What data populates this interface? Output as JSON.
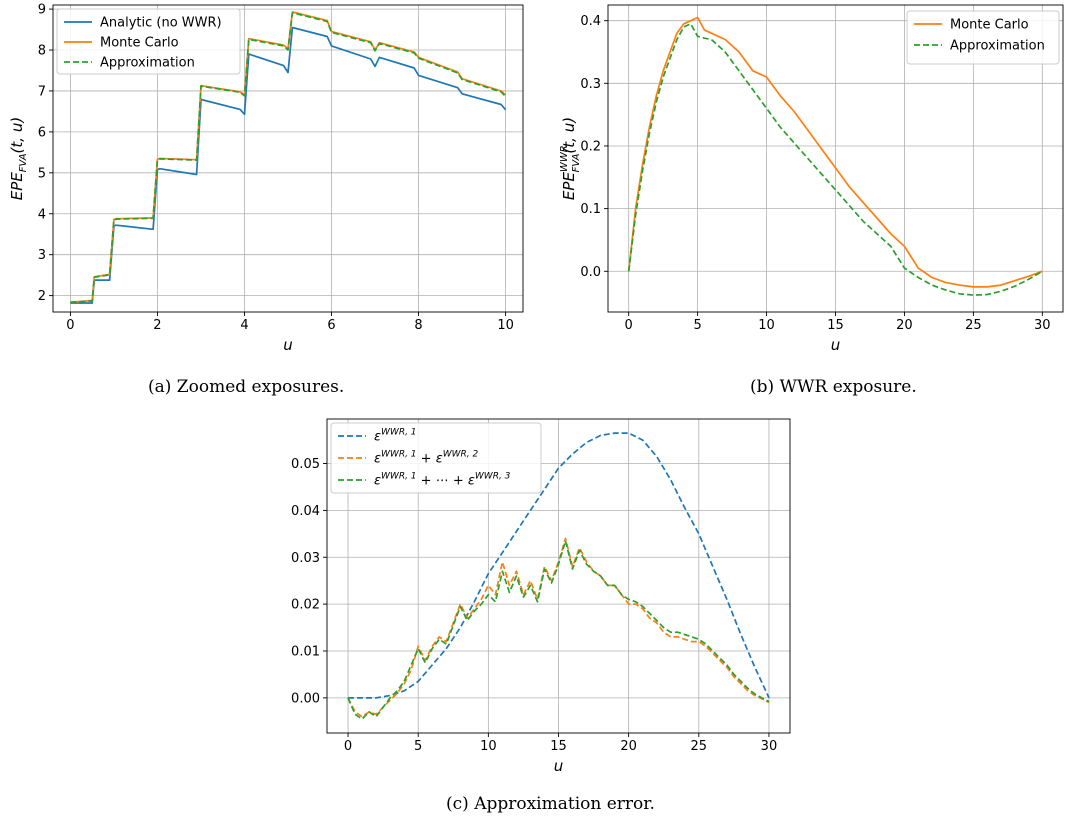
{
  "captions": {
    "a": "(a) Zoomed exposures.",
    "b": "(b) WWR exposure.",
    "c": "(c) Approximation error."
  },
  "chart_data": [
    {
      "id": "a",
      "type": "line",
      "title": "",
      "xlabel": "u",
      "ylabel": "EPE_FVA(t,u)",
      "xlim": [
        -0.4,
        10.4
      ],
      "ylim": [
        1.6,
        9.1
      ],
      "xticks": [
        0,
        2,
        4,
        6,
        8,
        10
      ],
      "yticks": [
        2,
        3,
        4,
        5,
        6,
        7,
        8,
        9
      ],
      "grid": true,
      "legend": "top-left",
      "series": [
        {
          "name": "Analytic (no WWR)",
          "color": "#1f77b4",
          "style": "solid",
          "x": [
            0.0,
            0.5,
            0.55,
            0.9,
            1.0,
            1.05,
            1.9,
            2.0,
            2.05,
            2.9,
            3.0,
            3.05,
            3.9,
            4.0,
            4.1,
            4.9,
            5.0,
            5.1,
            5.9,
            6.0,
            6.9,
            7.0,
            7.1,
            7.9,
            8.0,
            8.9,
            9.0,
            9.9,
            10.0
          ],
          "y": [
            1.82,
            1.82,
            2.38,
            2.38,
            3.7,
            3.72,
            3.62,
            5.08,
            5.1,
            4.96,
            6.8,
            6.78,
            6.55,
            6.43,
            7.9,
            7.62,
            7.45,
            8.55,
            8.33,
            8.1,
            7.78,
            7.6,
            7.82,
            7.56,
            7.38,
            7.08,
            6.93,
            6.67,
            6.54
          ]
        },
        {
          "name": "Monte Carlo",
          "color": "#ff7f0e",
          "style": "solid",
          "x": [
            0.0,
            0.5,
            0.55,
            0.9,
            1.0,
            1.05,
            1.9,
            2.0,
            2.05,
            2.9,
            3.0,
            3.05,
            3.9,
            4.0,
            4.1,
            4.9,
            5.0,
            5.1,
            5.9,
            6.0,
            6.9,
            7.0,
            7.1,
            7.9,
            8.0,
            8.9,
            9.0,
            9.9,
            10.0
          ],
          "y": [
            1.84,
            1.88,
            2.46,
            2.52,
            3.86,
            3.88,
            3.9,
            5.33,
            5.35,
            5.32,
            7.13,
            7.12,
            6.98,
            6.9,
            8.28,
            8.12,
            8.03,
            8.93,
            8.72,
            8.45,
            8.2,
            8.0,
            8.18,
            7.95,
            7.82,
            7.46,
            7.3,
            7.0,
            6.9
          ]
        },
        {
          "name": "Approximation",
          "color": "#2ca02c",
          "style": "dashed",
          "x": [
            0.0,
            0.5,
            0.55,
            0.9,
            1.0,
            1.05,
            1.9,
            2.0,
            2.05,
            2.9,
            3.0,
            3.05,
            3.9,
            4.0,
            4.1,
            4.9,
            5.0,
            5.1,
            5.9,
            6.0,
            6.9,
            7.0,
            7.1,
            7.9,
            8.0,
            8.9,
            9.0,
            9.9,
            10.0
          ],
          "y": [
            1.84,
            1.87,
            2.45,
            2.51,
            3.85,
            3.87,
            3.89,
            5.32,
            5.34,
            5.31,
            7.12,
            7.11,
            6.97,
            6.88,
            8.26,
            8.1,
            8.0,
            8.91,
            8.7,
            8.43,
            8.18,
            7.98,
            8.16,
            7.93,
            7.8,
            7.44,
            7.28,
            6.98,
            6.86
          ]
        }
      ]
    },
    {
      "id": "b",
      "type": "line",
      "title": "",
      "xlabel": "u",
      "ylabel": "EPE_FVA^WWR(t,u)",
      "xlim": [
        -1.5,
        31.5
      ],
      "ylim": [
        -0.065,
        0.425
      ],
      "xticks": [
        0,
        5,
        10,
        15,
        20,
        25,
        30
      ],
      "yticks": [
        0.0,
        0.1,
        0.2,
        0.3,
        0.4
      ],
      "grid": true,
      "legend": "top-right",
      "series": [
        {
          "name": "Monte Carlo",
          "color": "#ff7f0e",
          "style": "solid",
          "x": [
            0,
            0.5,
            1,
            1.5,
            2,
            2.5,
            3,
            3.5,
            4,
            4.5,
            5,
            5.5,
            6,
            7,
            8,
            9,
            10,
            11,
            12,
            13,
            14,
            15,
            16,
            17,
            18,
            19,
            20,
            21,
            22,
            23,
            24,
            25,
            26,
            27,
            28,
            29,
            30
          ],
          "y": [
            0.0,
            0.1,
            0.17,
            0.23,
            0.28,
            0.32,
            0.35,
            0.38,
            0.395,
            0.4,
            0.405,
            0.385,
            0.38,
            0.37,
            0.35,
            0.32,
            0.31,
            0.28,
            0.255,
            0.225,
            0.195,
            0.165,
            0.135,
            0.11,
            0.085,
            0.06,
            0.04,
            0.005,
            -0.01,
            -0.018,
            -0.022,
            -0.025,
            -0.025,
            -0.022,
            -0.015,
            -0.008,
            0.0
          ]
        },
        {
          "name": "Approximation",
          "color": "#2ca02c",
          "style": "dashed",
          "x": [
            0,
            0.5,
            1,
            1.5,
            2,
            2.5,
            3,
            3.5,
            4,
            4.5,
            5,
            5.5,
            6,
            7,
            8,
            9,
            10,
            11,
            12,
            13,
            14,
            15,
            16,
            17,
            18,
            19,
            20,
            21,
            22,
            23,
            24,
            25,
            26,
            27,
            28,
            29,
            30
          ],
          "y": [
            0.0,
            0.09,
            0.16,
            0.22,
            0.27,
            0.31,
            0.34,
            0.37,
            0.39,
            0.395,
            0.375,
            0.372,
            0.37,
            0.35,
            0.32,
            0.29,
            0.26,
            0.23,
            0.205,
            0.18,
            0.155,
            0.13,
            0.105,
            0.08,
            0.06,
            0.04,
            0.005,
            -0.01,
            -0.022,
            -0.03,
            -0.036,
            -0.038,
            -0.037,
            -0.032,
            -0.024,
            -0.013,
            0.0
          ]
        }
      ]
    },
    {
      "id": "c",
      "type": "line",
      "title": "",
      "xlabel": "u",
      "ylabel": "",
      "xlim": [
        -1.5,
        31.5
      ],
      "ylim": [
        -0.0075,
        0.0595
      ],
      "xticks": [
        0,
        5,
        10,
        15,
        20,
        25,
        30
      ],
      "yticks": [
        0.0,
        0.01,
        0.02,
        0.03,
        0.04,
        0.05
      ],
      "ytick_labels": [
        "0.00",
        "0.01",
        "0.02",
        "0.03",
        "0.04",
        "0.05"
      ],
      "grid": true,
      "legend": "top-left",
      "series": [
        {
          "name": "ε^{WWR,1}",
          "color": "#1f77b4",
          "style": "dashed",
          "x": [
            0,
            2,
            3,
            4,
            5,
            6,
            7,
            8,
            9,
            10,
            11,
            12,
            13,
            14,
            15,
            16,
            17,
            18,
            19,
            20,
            21,
            22,
            23,
            24,
            25,
            26,
            27,
            28,
            29,
            30
          ],
          "y": [
            0.0,
            0.0,
            0.0005,
            0.0015,
            0.0035,
            0.007,
            0.0105,
            0.015,
            0.0205,
            0.0265,
            0.031,
            0.0355,
            0.04,
            0.0445,
            0.049,
            0.052,
            0.0545,
            0.056,
            0.0565,
            0.0565,
            0.055,
            0.0515,
            0.0465,
            0.0405,
            0.035,
            0.028,
            0.021,
            0.0135,
            0.0065,
            0.0
          ]
        },
        {
          "name": "ε^{WWR,1} + ε^{WWR,2}",
          "color": "#ff7f0e",
          "style": "dashed",
          "x": [
            0,
            0.5,
            1,
            1.5,
            2,
            2.5,
            3,
            3.5,
            4,
            4.5,
            5,
            5.5,
            6,
            6.5,
            7,
            7.5,
            8,
            8.5,
            9,
            9.5,
            10,
            10.5,
            11,
            11.5,
            12,
            12.5,
            13,
            13.5,
            14,
            14.5,
            15,
            15.5,
            16,
            16.5,
            17,
            17.5,
            18,
            18.5,
            19,
            19.5,
            20,
            20.5,
            21,
            21.5,
            22,
            22.5,
            23,
            23.5,
            24,
            24.5,
            25,
            25.5,
            26,
            26.5,
            27,
            27.5,
            28,
            28.5,
            29,
            29.5,
            30
          ],
          "y": [
            0.0,
            -0.003,
            -0.004,
            -0.003,
            -0.0035,
            -0.002,
            -0.0005,
            0.001,
            0.003,
            0.006,
            0.011,
            0.008,
            0.011,
            0.013,
            0.012,
            0.016,
            0.02,
            0.017,
            0.019,
            0.021,
            0.024,
            0.022,
            0.029,
            0.024,
            0.027,
            0.022,
            0.025,
            0.021,
            0.028,
            0.025,
            0.029,
            0.034,
            0.028,
            0.032,
            0.029,
            0.027,
            0.026,
            0.024,
            0.024,
            0.022,
            0.02,
            0.02,
            0.019,
            0.017,
            0.016,
            0.014,
            0.013,
            0.013,
            0.0125,
            0.012,
            0.012,
            0.011,
            0.0095,
            0.008,
            0.0065,
            0.0045,
            0.003,
            0.0015,
            0.0005,
            -0.0002,
            -0.001
          ]
        },
        {
          "name": "ε^{WWR,1} + ⋯ + ε^{WWR,3}",
          "color": "#2ca02c",
          "style": "dashed",
          "x": [
            0,
            0.5,
            1,
            1.5,
            2,
            2.5,
            3,
            3.5,
            4,
            4.5,
            5,
            5.5,
            6,
            6.5,
            7,
            7.5,
            8,
            8.5,
            9,
            9.5,
            10,
            10.5,
            11,
            11.5,
            12,
            12.5,
            13,
            13.5,
            14,
            14.5,
            15,
            15.5,
            16,
            16.5,
            17,
            17.5,
            18,
            18.5,
            19,
            19.5,
            20,
            20.5,
            21,
            21.5,
            22,
            22.5,
            23,
            23.5,
            24,
            24.5,
            25,
            25.5,
            26,
            26.5,
            27,
            27.5,
            28,
            28.5,
            29,
            29.5,
            30
          ],
          "y": [
            0.0,
            -0.0035,
            -0.0045,
            -0.003,
            -0.004,
            -0.002,
            0.0,
            0.0015,
            0.0035,
            0.007,
            0.0105,
            0.0075,
            0.0105,
            0.0125,
            0.0115,
            0.0155,
            0.0195,
            0.0165,
            0.0185,
            0.02,
            0.022,
            0.0205,
            0.027,
            0.0225,
            0.026,
            0.0215,
            0.024,
            0.0205,
            0.0275,
            0.0245,
            0.0285,
            0.0335,
            0.0275,
            0.0315,
            0.0285,
            0.027,
            0.026,
            0.024,
            0.024,
            0.022,
            0.021,
            0.0205,
            0.0195,
            0.018,
            0.0165,
            0.015,
            0.014,
            0.014,
            0.0135,
            0.013,
            0.0125,
            0.0115,
            0.01,
            0.0085,
            0.007,
            0.005,
            0.0035,
            0.002,
            0.0008,
            0.0,
            -0.0008
          ]
        }
      ]
    }
  ]
}
